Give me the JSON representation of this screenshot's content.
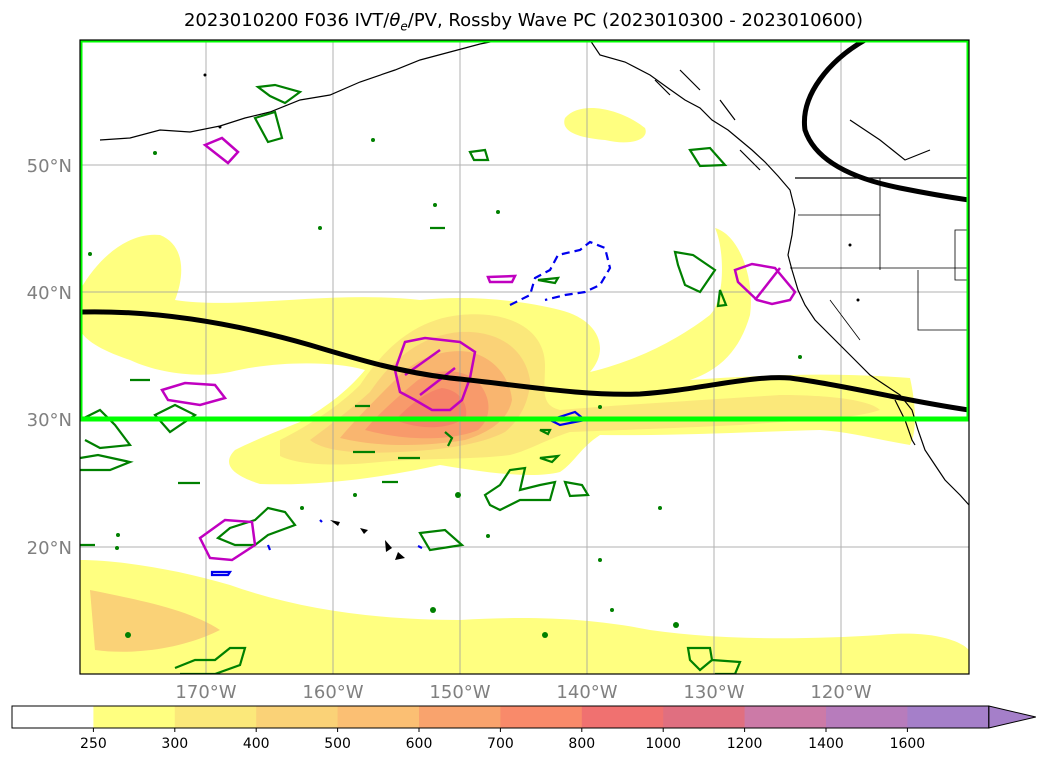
{
  "title": {
    "prefix": "2023010200 F036 IVT/",
    "theta": "θ",
    "theta_sub": "e",
    "suffix": "/PV, Rossby Wave PC (2023010300 - 2023010600)"
  },
  "map": {
    "lon_range": [
      -180,
      -110
    ],
    "lat_range": [
      10,
      60
    ],
    "lat_labels": [
      "50°N",
      "40°N",
      "30°N",
      "20°N"
    ],
    "lat_values": [
      50,
      40,
      30,
      20
    ],
    "lon_labels": [
      "170°W",
      "160°W",
      "150°W",
      "140°W",
      "130°W",
      "120°W"
    ],
    "lon_values": [
      -170,
      -160,
      -150,
      -140,
      -130,
      -120
    ],
    "box": {
      "lon": [
        -180,
        -110
      ],
      "lat": [
        30,
        60
      ],
      "color": "#00ff00"
    },
    "colors": {
      "ivt_250": "#ffff80",
      "ivt_300": "#fbe87a",
      "ivt_400": "#fad277",
      "ivt_500": "#f9b56f",
      "ivt_600": "#f89a6b",
      "ivt_700": "#f58468",
      "pv_contour": "#008000",
      "theta_contour": "#c000c0",
      "neg_contour": "#0000ee",
      "rossby_line": "#000000"
    }
  },
  "colorbar": {
    "levels": [
      "250",
      "300",
      "400",
      "500",
      "600",
      "700",
      "800",
      "1000",
      "1200",
      "1400",
      "1600"
    ],
    "colors": [
      "#ffffff",
      "#ffff80",
      "#fbe87a",
      "#fad277",
      "#fbbf73",
      "#f9a36d",
      "#f98a6a",
      "#f07170",
      "#e06f80",
      "#cc7aa7",
      "#b77cbc",
      "#a57fc9"
    ]
  }
}
